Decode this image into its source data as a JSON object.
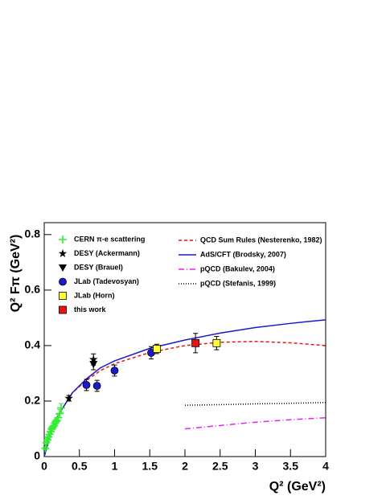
{
  "chart_data": {
    "type": "scatter",
    "x_label": "Q² (GeV²)",
    "y_label": "Q² Fπ (GeV²)",
    "xlim": [
      0,
      4
    ],
    "ylim": [
      0,
      0.843
    ],
    "xticks": [
      0,
      0.5,
      1,
      1.5,
      2,
      2.5,
      3,
      3.5,
      4
    ],
    "yticks": [
      0,
      0.2,
      0.4,
      0.6,
      0.8
    ],
    "series": [
      {
        "name": "CERN π-e scattering",
        "color": "#33ee33",
        "marker": "plus",
        "x": [
          0.015,
          0.03,
          0.045,
          0.06,
          0.075,
          0.09,
          0.105,
          0.12,
          0.135,
          0.15,
          0.165,
          0.18,
          0.2,
          0.22,
          0.24
        ],
        "values": [
          0.03,
          0.05,
          0.06,
          0.07,
          0.08,
          0.09,
          0.1,
          0.105,
          0.11,
          0.12,
          0.125,
          0.13,
          0.14,
          0.155,
          0.175
        ],
        "errors": [
          0.005,
          0.005,
          0.006,
          0.006,
          0.007,
          0.007,
          0.008,
          0.008,
          0.009,
          0.009,
          0.01,
          0.01,
          0.012,
          0.014,
          0.016
        ]
      },
      {
        "name": "DESY (Ackermann)",
        "color": "#000000",
        "marker": "star",
        "x": [
          0.35,
          0.7
        ],
        "values": [
          0.21,
          0.35
        ],
        "errors": [
          0.01,
          0.02
        ]
      },
      {
        "name": "DESY (Brauel)",
        "color": "#000000",
        "marker": "triangle",
        "x": [
          0.7
        ],
        "values": [
          0.333
        ],
        "errors": [
          0.02
        ]
      },
      {
        "name": "JLab (Tadevosyan)",
        "color": "#1a1acc",
        "marker": "circle",
        "x": [
          0.6,
          0.75,
          1.0,
          1.52
        ],
        "values": [
          0.258,
          0.255,
          0.31,
          0.374
        ],
        "errors": [
          0.02,
          0.02,
          0.02,
          0.022
        ]
      },
      {
        "name": "JLab (Horn)",
        "color": "#ffff33",
        "marker": "square",
        "x": [
          1.6,
          2.45
        ],
        "values": [
          0.388,
          0.409
        ],
        "errors": [
          0.017,
          0.024
        ]
      },
      {
        "name": "this work",
        "color": "#ee1111",
        "marker": "square",
        "x": [
          2.15
        ],
        "values": [
          0.409
        ],
        "errors": [
          0.035
        ]
      },
      {
        "name": "QCD Sum Rules (Nesterenko, 1982)",
        "color": "#ee1111",
        "line": "dashed",
        "x": [
          0,
          0.1,
          0.2,
          0.4,
          0.6,
          0.8,
          1,
          1.5,
          2,
          2.5,
          3,
          3.5,
          4
        ],
        "values": [
          0,
          0.09,
          0.15,
          0.23,
          0.275,
          0.31,
          0.335,
          0.375,
          0.4,
          0.412,
          0.415,
          0.41,
          0.4
        ]
      },
      {
        "name": "AdS/CFT (Brodsky, 2007)",
        "color": "#1a1acc",
        "line": "solid",
        "x": [
          0,
          0.1,
          0.2,
          0.4,
          0.6,
          0.8,
          1,
          1.5,
          2,
          2.5,
          3,
          3.5,
          4
        ],
        "values": [
          0,
          0.09,
          0.15,
          0.23,
          0.28,
          0.32,
          0.345,
          0.39,
          0.42,
          0.445,
          0.465,
          0.48,
          0.493
        ]
      },
      {
        "name": "pQCD (Bakulev, 2004)",
        "color": "#ee22ee",
        "line": "dashdot",
        "x": [
          2,
          2.5,
          3,
          3.5,
          4
        ],
        "values": [
          0.1,
          0.112,
          0.124,
          0.133,
          0.14
        ]
      },
      {
        "name": "pQCD (Stefanis, 1999)",
        "color": "#000000",
        "line": "dotted",
        "x": [
          2,
          2.5,
          3,
          3.5,
          4
        ],
        "values": [
          0.185,
          0.187,
          0.19,
          0.192,
          0.195
        ]
      }
    ]
  }
}
